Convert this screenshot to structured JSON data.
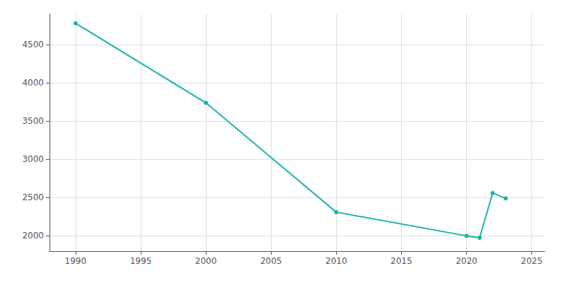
{
  "chart_data": {
    "type": "line",
    "x": [
      1990,
      2000,
      2010,
      2020,
      2021,
      2022,
      2023
    ],
    "values": [
      4780,
      3740,
      2310,
      2000,
      1975,
      2560,
      2490
    ],
    "color": "#20B2AA",
    "marker": "circle",
    "xlim": [
      1988,
      2026
    ],
    "xticks": [
      1990,
      1995,
      2000,
      2005,
      2010,
      2015,
      2020,
      2025
    ],
    "ylim": [
      1800,
      4900
    ],
    "yticks": [
      2000,
      2500,
      3000,
      3500,
      4000,
      4500
    ],
    "grid": true
  }
}
